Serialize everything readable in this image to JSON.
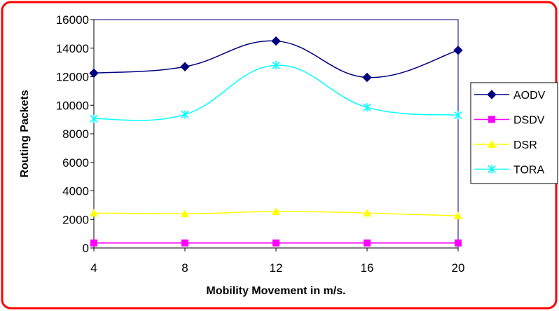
{
  "chart_data": {
    "type": "line",
    "title": "",
    "xlabel": "Mobility Movement in m/s.",
    "ylabel": "Routing Packets",
    "x": [
      4,
      8,
      12,
      16,
      20
    ],
    "xticks": [
      "4",
      "8",
      "12",
      "16",
      "20"
    ],
    "ylim": [
      0,
      16000
    ],
    "yticks": [
      "0",
      "2000",
      "4000",
      "6000",
      "8000",
      "10000",
      "12000",
      "14000",
      "16000"
    ],
    "grid": false,
    "legend_position": "right",
    "series": [
      {
        "name": "AODV",
        "values": [
          12250,
          12700,
          14500,
          11950,
          13850
        ],
        "color": "#000080",
        "marker": "diamond"
      },
      {
        "name": "DSDV",
        "values": [
          350,
          350,
          350,
          350,
          350
        ],
        "color": "#ff00ff",
        "marker": "square"
      },
      {
        "name": "DSR",
        "values": [
          2450,
          2400,
          2550,
          2450,
          2250
        ],
        "color": "#ffff00",
        "marker": "triangle"
      },
      {
        "name": "TORA",
        "values": [
          9050,
          9350,
          12800,
          9850,
          9300
        ],
        "color": "#00ffff",
        "marker": "star"
      }
    ]
  },
  "colors": {
    "frame_border": "#ff0000",
    "plot_border": "#000080",
    "axis": "#000000"
  }
}
